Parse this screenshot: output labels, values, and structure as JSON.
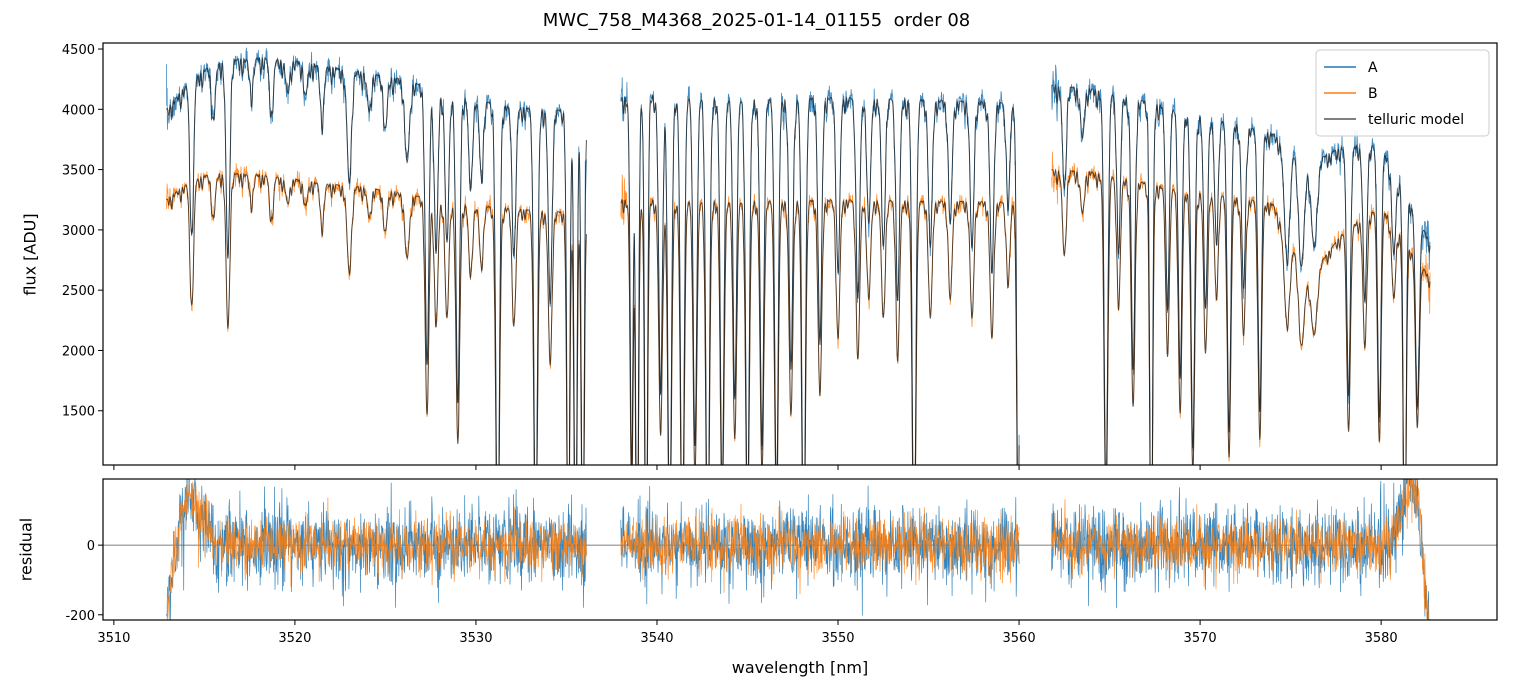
{
  "chart_data": [
    {
      "panel": "main",
      "type": "line",
      "title": "MWC_758_M4368_2025-01-14_01155  order 08",
      "xlabel": "",
      "ylabel": "flux [ADU]",
      "xlim": [
        3509.4,
        3586.4
      ],
      "ylim": [
        1050,
        4550
      ],
      "x_ticks": [
        3510,
        3520,
        3530,
        3540,
        3550,
        3560,
        3570,
        3580
      ],
      "y_ticks": [
        1500,
        2000,
        2500,
        3000,
        3500,
        4000,
        4500
      ],
      "legend": {
        "position": "top-right",
        "entries": [
          {
            "label": "A",
            "color": "#1f77b4"
          },
          {
            "label": "B",
            "color": "#ff7f0e"
          },
          {
            "label": "telluric model",
            "color": "#555555"
          }
        ]
      },
      "segments": [
        [
          3512.9,
          3536.1
        ],
        [
          3538.0,
          3560.0
        ],
        [
          3561.8,
          3582.7
        ]
      ],
      "series": [
        {
          "name": "A",
          "color": "#1f77b4",
          "x": [
            3512.9,
            3514,
            3515,
            3516,
            3518,
            3520,
            3522,
            3524,
            3526,
            3528,
            3530,
            3532,
            3534,
            3536.1,
            3538.0,
            3540,
            3545,
            3550,
            3555,
            3560.0,
            3561.8,
            3564,
            3566,
            3568,
            3570,
            3572,
            3574,
            3576,
            3578,
            3580,
            3582.7
          ],
          "values": [
            4000,
            4200,
            4330,
            4400,
            4430,
            4400,
            4350,
            4300,
            4250,
            4150,
            4080,
            4020,
            4000,
            3980,
            4100,
            4120,
            4080,
            4100,
            4080,
            4050,
            4200,
            4170,
            4100,
            4030,
            3950,
            3880,
            3800,
            3550,
            3700,
            3700,
            2900
          ]
        },
        {
          "name": "B",
          "color": "#ff7f0e",
          "x": [
            3512.9,
            3514,
            3515,
            3516,
            3518,
            3520,
            3522,
            3524,
            3526,
            3528,
            3530,
            3532,
            3534,
            3536.1,
            3538.0,
            3540,
            3545,
            3550,
            3555,
            3560.0,
            3561.8,
            3564,
            3566,
            3568,
            3570,
            3572,
            3574,
            3576,
            3578,
            3580,
            3582.7
          ],
          "values": [
            3250,
            3380,
            3450,
            3470,
            3460,
            3420,
            3380,
            3350,
            3300,
            3250,
            3200,
            3180,
            3150,
            3150,
            3250,
            3250,
            3240,
            3250,
            3240,
            3230,
            3500,
            3480,
            3420,
            3360,
            3320,
            3270,
            3220,
            2600,
            3000,
            3200,
            2600
          ]
        },
        {
          "name": "telluric model",
          "color": "#555555"
        }
      ],
      "absorption_lines": [
        {
          "x": 3514.3,
          "depth": 0.3,
          "w": 0.1
        },
        {
          "x": 3515.5,
          "depth": 0.1,
          "w": 0.1
        },
        {
          "x": 3516.3,
          "depth": 0.37,
          "w": 0.1
        },
        {
          "x": 3517.6,
          "depth": 0.06,
          "w": 0.1
        },
        {
          "x": 3518.7,
          "depth": 0.1,
          "w": 0.1
        },
        {
          "x": 3519.6,
          "depth": 0.06,
          "w": 0.1
        },
        {
          "x": 3520.6,
          "depth": 0.06,
          "w": 0.1
        },
        {
          "x": 3521.5,
          "depth": 0.1,
          "w": 0.1
        },
        {
          "x": 3523.0,
          "depth": 0.21,
          "w": 0.12
        },
        {
          "x": 3524.1,
          "depth": 0.07,
          "w": 0.1
        },
        {
          "x": 3525.0,
          "depth": 0.1,
          "w": 0.1
        },
        {
          "x": 3526.2,
          "depth": 0.16,
          "w": 0.12
        },
        {
          "x": 3527.3,
          "depth": 0.55,
          "w": 0.1
        },
        {
          "x": 3527.8,
          "depth": 0.32,
          "w": 0.1
        },
        {
          "x": 3528.4,
          "depth": 0.3,
          "w": 0.1
        },
        {
          "x": 3529.0,
          "depth": 0.62,
          "w": 0.1
        },
        {
          "x": 3529.7,
          "depth": 0.18,
          "w": 0.1
        },
        {
          "x": 3530.3,
          "depth": 0.15,
          "w": 0.1
        },
        {
          "x": 3531.2,
          "depth": 0.95,
          "w": 0.1
        },
        {
          "x": 3532.1,
          "depth": 0.3,
          "w": 0.1
        },
        {
          "x": 3533.3,
          "depth": 0.9,
          "w": 0.1
        },
        {
          "x": 3534.1,
          "depth": 0.4,
          "w": 0.1
        },
        {
          "x": 3535.1,
          "depth": 1.0,
          "w": 0.08
        },
        {
          "x": 3535.5,
          "depth": 1.0,
          "w": 0.08
        },
        {
          "x": 3535.9,
          "depth": 1.0,
          "w": 0.08
        },
        {
          "x": 3538.6,
          "depth": 0.75,
          "w": 0.08
        },
        {
          "x": 3538.9,
          "depth": 1.0,
          "w": 0.08
        },
        {
          "x": 3539.4,
          "depth": 1.0,
          "w": 0.08
        },
        {
          "x": 3540.2,
          "depth": 0.6,
          "w": 0.1
        },
        {
          "x": 3540.7,
          "depth": 0.9,
          "w": 0.1
        },
        {
          "x": 3541.4,
          "depth": 0.95,
          "w": 0.1
        },
        {
          "x": 3542.1,
          "depth": 0.7,
          "w": 0.1
        },
        {
          "x": 3542.8,
          "depth": 0.95,
          "w": 0.1
        },
        {
          "x": 3543.6,
          "depth": 0.8,
          "w": 0.1
        },
        {
          "x": 3544.3,
          "depth": 0.6,
          "w": 0.1
        },
        {
          "x": 3545.0,
          "depth": 0.85,
          "w": 0.1
        },
        {
          "x": 3545.8,
          "depth": 0.7,
          "w": 0.1
        },
        {
          "x": 3546.6,
          "depth": 0.8,
          "w": 0.1
        },
        {
          "x": 3547.4,
          "depth": 0.55,
          "w": 0.1
        },
        {
          "x": 3548.1,
          "depth": 0.95,
          "w": 0.1
        },
        {
          "x": 3549.0,
          "depth": 0.5,
          "w": 0.1
        },
        {
          "x": 3550.0,
          "depth": 0.35,
          "w": 0.1
        },
        {
          "x": 3551.1,
          "depth": 0.4,
          "w": 0.1
        },
        {
          "x": 3551.7,
          "depth": 0.25,
          "w": 0.1
        },
        {
          "x": 3552.5,
          "depth": 0.3,
          "w": 0.1
        },
        {
          "x": 3553.3,
          "depth": 0.4,
          "w": 0.1
        },
        {
          "x": 3554.2,
          "depth": 0.95,
          "w": 0.1
        },
        {
          "x": 3555.1,
          "depth": 0.3,
          "w": 0.1
        },
        {
          "x": 3556.2,
          "depth": 0.25,
          "w": 0.1
        },
        {
          "x": 3557.4,
          "depth": 0.3,
          "w": 0.1
        },
        {
          "x": 3558.5,
          "depth": 0.35,
          "w": 0.1
        },
        {
          "x": 3559.4,
          "depth": 0.2,
          "w": 0.1
        },
        {
          "x": 3559.95,
          "depth": 0.85,
          "w": 0.08
        },
        {
          "x": 3562.5,
          "depth": 0.2,
          "w": 0.1
        },
        {
          "x": 3563.5,
          "depth": 0.1,
          "w": 0.1
        },
        {
          "x": 3564.8,
          "depth": 0.8,
          "w": 0.1
        },
        {
          "x": 3565.5,
          "depth": 0.3,
          "w": 0.1
        },
        {
          "x": 3566.3,
          "depth": 0.55,
          "w": 0.1
        },
        {
          "x": 3567.3,
          "depth": 1.0,
          "w": 0.08
        },
        {
          "x": 3568.2,
          "depth": 0.4,
          "w": 0.1
        },
        {
          "x": 3568.9,
          "depth": 0.55,
          "w": 0.1
        },
        {
          "x": 3569.6,
          "depth": 0.7,
          "w": 0.1
        },
        {
          "x": 3570.3,
          "depth": 0.4,
          "w": 0.1
        },
        {
          "x": 3570.9,
          "depth": 0.25,
          "w": 0.1
        },
        {
          "x": 3571.6,
          "depth": 0.65,
          "w": 0.1
        },
        {
          "x": 3572.4,
          "depth": 0.35,
          "w": 0.1
        },
        {
          "x": 3573.3,
          "depth": 0.6,
          "w": 0.1
        },
        {
          "x": 3574.8,
          "depth": 0.25,
          "w": 0.15
        },
        {
          "x": 3575.6,
          "depth": 0.25,
          "w": 0.15
        },
        {
          "x": 3576.3,
          "depth": 0.2,
          "w": 0.15
        },
        {
          "x": 3578.2,
          "depth": 0.55,
          "w": 0.1
        },
        {
          "x": 3579.1,
          "depth": 0.35,
          "w": 0.1
        },
        {
          "x": 3579.9,
          "depth": 0.6,
          "w": 0.1
        },
        {
          "x": 3580.7,
          "depth": 0.2,
          "w": 0.1
        },
        {
          "x": 3581.3,
          "depth": 1.0,
          "w": 0.08
        },
        {
          "x": 3582.0,
          "depth": 0.5,
          "w": 0.1
        }
      ]
    },
    {
      "panel": "residual",
      "type": "line",
      "xlabel": "wavelength [nm]",
      "ylabel": "residual",
      "xlim": [
        3509.4,
        3586.4
      ],
      "ylim": [
        -215,
        190
      ],
      "x_ticks": [
        3510,
        3520,
        3530,
        3540,
        3550,
        3560,
        3570,
        3580
      ],
      "y_ticks": [
        0,
        -200
      ],
      "zero_line": true,
      "series": [
        {
          "name": "A",
          "color": "#1f77b4",
          "noise": 70
        },
        {
          "name": "B",
          "color": "#ff7f0e",
          "noise": 50
        }
      ]
    }
  ]
}
